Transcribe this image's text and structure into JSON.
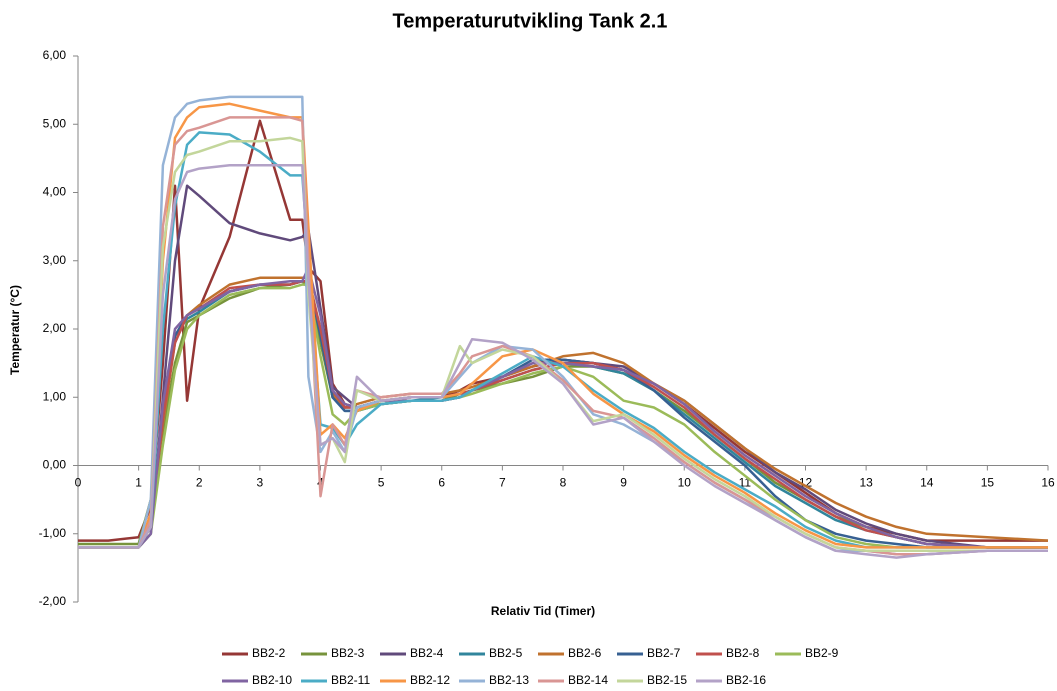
{
  "chart_data": {
    "type": "line",
    "title": "Temperaturutvikling Tank 2.1",
    "x_label": "Relativ Tid (Timer)",
    "y_label": "Temperatur (°C)",
    "x": [
      0,
      0.5,
      1,
      1.2,
      1.4,
      1.6,
      1.8,
      2,
      2.5,
      3,
      3.5,
      3.7,
      3.8,
      4,
      4.2,
      4.4,
      4.6,
      5,
      5.5,
      6,
      6.3,
      6.5,
      7,
      7.5,
      8,
      8.5,
      9,
      9.5,
      10,
      10.5,
      11,
      11.5,
      12,
      12.5,
      13,
      13.5,
      14,
      15,
      16
    ],
    "xlim": [
      0,
      16
    ],
    "xticks": [
      0,
      1,
      2,
      3,
      4,
      5,
      6,
      7,
      8,
      9,
      10,
      11,
      12,
      13,
      14,
      15,
      16
    ],
    "ylim": [
      -2,
      6
    ],
    "yticks": [
      {
        "value": -2,
        "label": "-2,00"
      },
      {
        "value": -1,
        "label": "-1,00"
      },
      {
        "value": 0,
        "label": "0,00"
      },
      {
        "value": 1,
        "label": "1,00"
      },
      {
        "value": 2,
        "label": "2,00"
      },
      {
        "value": 3,
        "label": "3,00"
      },
      {
        "value": 4,
        "label": "4,00"
      },
      {
        "value": 5,
        "label": "5,00"
      },
      {
        "value": 6,
        "label": "6,00"
      }
    ],
    "series": [
      {
        "name": "BB2-2",
        "color": "#953735",
        "values": [
          -1.1,
          -1.1,
          -1.05,
          -0.6,
          1.5,
          4.1,
          0.95,
          2.3,
          3.35,
          5.05,
          3.6,
          3.6,
          2.9,
          2.7,
          1.2,
          0.9,
          0.85,
          0.95,
          1.0,
          1.0,
          1.1,
          1.2,
          1.3,
          1.45,
          1.55,
          1.5,
          1.4,
          1.2,
          0.9,
          0.55,
          0.2,
          -0.1,
          -0.4,
          -0.7,
          -0.9,
          -1.0,
          -1.1,
          -1.1,
          -1.1
        ]
      },
      {
        "name": "BB2-3",
        "color": "#77933c",
        "values": [
          -1.15,
          -1.15,
          -1.15,
          -0.5,
          0.5,
          1.5,
          2.1,
          2.2,
          2.45,
          2.6,
          2.65,
          2.7,
          2.6,
          1.8,
          1.0,
          0.85,
          0.85,
          0.9,
          0.95,
          0.95,
          1.05,
          1.1,
          1.2,
          1.3,
          1.45,
          1.45,
          1.35,
          1.1,
          0.8,
          0.45,
          0.1,
          -0.25,
          -0.5,
          -0.75,
          -0.9,
          -1.05,
          -1.15,
          -1.2,
          -1.2
        ]
      },
      {
        "name": "BB2-4",
        "color": "#604a7b",
        "values": [
          -1.2,
          -1.2,
          -1.2,
          -1.0,
          1.0,
          3.0,
          4.1,
          3.95,
          3.55,
          3.4,
          3.3,
          3.35,
          3.45,
          2.3,
          1.15,
          1.0,
          0.85,
          0.95,
          0.95,
          0.95,
          1.0,
          1.1,
          1.3,
          1.5,
          1.55,
          1.5,
          1.45,
          1.2,
          0.95,
          0.6,
          0.25,
          -0.1,
          -0.35,
          -0.65,
          -0.85,
          -1.0,
          -1.1,
          -1.2,
          -1.2
        ]
      },
      {
        "name": "BB2-5",
        "color": "#31859c",
        "values": [
          -1.2,
          -1.2,
          -1.2,
          -0.8,
          0.8,
          1.9,
          2.15,
          2.25,
          2.55,
          2.65,
          2.65,
          2.7,
          2.7,
          1.9,
          1.0,
          0.8,
          0.8,
          0.9,
          0.95,
          1.0,
          1.05,
          1.1,
          1.25,
          1.4,
          1.5,
          1.45,
          1.35,
          1.1,
          0.75,
          0.4,
          0.05,
          -0.3,
          -0.55,
          -0.8,
          -0.95,
          -1.05,
          -1.15,
          -1.2,
          -1.2
        ]
      },
      {
        "name": "BB2-6",
        "color": "#c0722e",
        "values": [
          -1.2,
          -1.2,
          -1.2,
          -0.9,
          0.6,
          1.8,
          2.2,
          2.35,
          2.65,
          2.75,
          2.75,
          2.75,
          2.75,
          2.0,
          1.05,
          0.85,
          0.9,
          1.0,
          1.05,
          1.05,
          1.1,
          1.15,
          1.3,
          1.45,
          1.6,
          1.65,
          1.5,
          1.2,
          0.95,
          0.6,
          0.25,
          -0.05,
          -0.3,
          -0.55,
          -0.75,
          -0.9,
          -1.0,
          -1.05,
          -1.1
        ]
      },
      {
        "name": "BB2-7",
        "color": "#376092",
        "values": [
          -1.2,
          -1.2,
          -1.2,
          -0.9,
          0.7,
          1.9,
          2.2,
          2.3,
          2.55,
          2.65,
          2.65,
          2.7,
          2.7,
          1.9,
          1.0,
          0.8,
          0.8,
          0.9,
          0.95,
          0.95,
          1.0,
          1.1,
          1.3,
          1.55,
          1.55,
          1.5,
          1.4,
          1.1,
          0.7,
          0.35,
          0.0,
          -0.45,
          -0.8,
          -1.0,
          -1.1,
          -1.15,
          -1.2,
          -1.2,
          -1.2
        ]
      },
      {
        "name": "BB2-8",
        "color": "#c0504d",
        "values": [
          -1.2,
          -1.2,
          -1.2,
          -0.9,
          0.7,
          1.8,
          2.2,
          2.3,
          2.6,
          2.65,
          2.65,
          2.7,
          2.7,
          2.0,
          1.1,
          0.85,
          0.85,
          0.95,
          1.0,
          1.0,
          1.05,
          1.1,
          1.25,
          1.4,
          1.5,
          1.5,
          1.4,
          1.15,
          0.85,
          0.45,
          0.1,
          -0.2,
          -0.5,
          -0.75,
          -0.95,
          -1.05,
          -1.15,
          -1.2,
          -1.2
        ]
      },
      {
        "name": "BB2-9",
        "color": "#9bbb59",
        "values": [
          -1.2,
          -1.2,
          -1.2,
          -1.0,
          0.3,
          1.4,
          2.0,
          2.2,
          2.5,
          2.6,
          2.6,
          2.65,
          2.65,
          1.6,
          0.75,
          0.6,
          0.8,
          0.9,
          0.95,
          0.95,
          1.0,
          1.05,
          1.2,
          1.35,
          1.45,
          1.3,
          0.95,
          0.85,
          0.6,
          0.2,
          -0.15,
          -0.5,
          -0.8,
          -1.05,
          -1.15,
          -1.2,
          -1.2,
          -1.2,
          -1.2
        ]
      },
      {
        "name": "BB2-10",
        "color": "#8064a2",
        "values": [
          -1.2,
          -1.2,
          -1.2,
          -1.0,
          0.9,
          2.0,
          2.2,
          2.3,
          2.55,
          2.65,
          2.7,
          2.7,
          2.9,
          2.2,
          1.1,
          0.9,
          0.85,
          0.95,
          0.95,
          0.95,
          1.0,
          1.1,
          1.3,
          1.5,
          1.5,
          1.45,
          1.4,
          1.2,
          0.9,
          0.5,
          0.15,
          -0.15,
          -0.45,
          -0.7,
          -0.9,
          -1.05,
          -1.15,
          -1.2,
          -1.2
        ]
      },
      {
        "name": "BB2-11",
        "color": "#4bacc6",
        "values": [
          -1.2,
          -1.2,
          -1.2,
          -0.9,
          2.0,
          3.8,
          4.7,
          4.88,
          4.85,
          4.6,
          4.25,
          4.25,
          3.0,
          0.6,
          0.55,
          0.3,
          0.6,
          0.9,
          0.95,
          0.95,
          1.0,
          1.1,
          1.35,
          1.6,
          1.45,
          1.1,
          0.8,
          0.55,
          0.2,
          -0.1,
          -0.35,
          -0.6,
          -0.9,
          -1.1,
          -1.2,
          -1.2,
          -1.2,
          -1.2,
          -1.2
        ]
      },
      {
        "name": "BB2-12",
        "color": "#f79646",
        "values": [
          -1.2,
          -1.2,
          -1.2,
          -0.7,
          3.0,
          4.8,
          5.1,
          5.25,
          5.3,
          5.2,
          5.1,
          5.1,
          3.5,
          0.45,
          0.6,
          0.4,
          0.8,
          0.95,
          1.0,
          1.0,
          1.05,
          1.2,
          1.6,
          1.7,
          1.5,
          1.05,
          0.75,
          0.5,
          0.15,
          -0.15,
          -0.4,
          -0.7,
          -0.95,
          -1.15,
          -1.2,
          -1.2,
          -1.2,
          -1.2,
          -1.2
        ]
      },
      {
        "name": "BB2-13",
        "color": "#95b3d7",
        "values": [
          -1.2,
          -1.2,
          -1.2,
          -0.5,
          4.4,
          5.1,
          5.3,
          5.35,
          5.4,
          5.4,
          5.4,
          5.4,
          1.3,
          0.2,
          0.5,
          0.2,
          0.85,
          0.95,
          1.0,
          1.0,
          1.3,
          1.5,
          1.75,
          1.7,
          1.3,
          0.75,
          0.6,
          0.35,
          0.05,
          -0.25,
          -0.5,
          -0.8,
          -1.05,
          -1.25,
          -1.25,
          -1.3,
          -1.3,
          -1.25,
          -1.25
        ]
      },
      {
        "name": "BB2-14",
        "color": "#d99694",
        "values": [
          -1.2,
          -1.2,
          -1.2,
          -0.8,
          3.5,
          4.7,
          4.9,
          4.95,
          5.1,
          5.1,
          5.1,
          5.05,
          3.0,
          -0.45,
          0.6,
          0.3,
          1.1,
          1.0,
          1.05,
          1.05,
          1.35,
          1.6,
          1.75,
          1.6,
          1.25,
          0.8,
          0.7,
          0.4,
          0.05,
          -0.25,
          -0.5,
          -0.75,
          -1.0,
          -1.2,
          -1.25,
          -1.3,
          -1.3,
          -1.25,
          -1.25
        ]
      },
      {
        "name": "BB2-15",
        "color": "#c3d69b",
        "values": [
          -1.2,
          -1.2,
          -1.2,
          -0.9,
          3.2,
          4.3,
          4.55,
          4.6,
          4.75,
          4.75,
          4.8,
          4.75,
          2.5,
          0.3,
          0.4,
          0.05,
          1.1,
          0.95,
          1.0,
          1.0,
          1.75,
          1.5,
          1.7,
          1.6,
          1.2,
          0.65,
          0.75,
          0.45,
          0.1,
          -0.2,
          -0.45,
          -0.75,
          -1.0,
          -1.2,
          -1.25,
          -1.25,
          -1.25,
          -1.25,
          -1.25
        ]
      },
      {
        "name": "BB2-16",
        "color": "#b3a2c7",
        "values": [
          -1.2,
          -1.2,
          -1.2,
          -0.9,
          2.5,
          3.9,
          4.3,
          4.35,
          4.4,
          4.4,
          4.4,
          4.4,
          2.7,
          0.3,
          0.4,
          0.2,
          1.3,
          0.95,
          1.0,
          1.0,
          1.5,
          1.85,
          1.8,
          1.55,
          1.2,
          0.6,
          0.7,
          0.35,
          0.0,
          -0.3,
          -0.55,
          -0.8,
          -1.05,
          -1.25,
          -1.3,
          -1.35,
          -1.3,
          -1.25,
          -1.25
        ]
      }
    ]
  }
}
